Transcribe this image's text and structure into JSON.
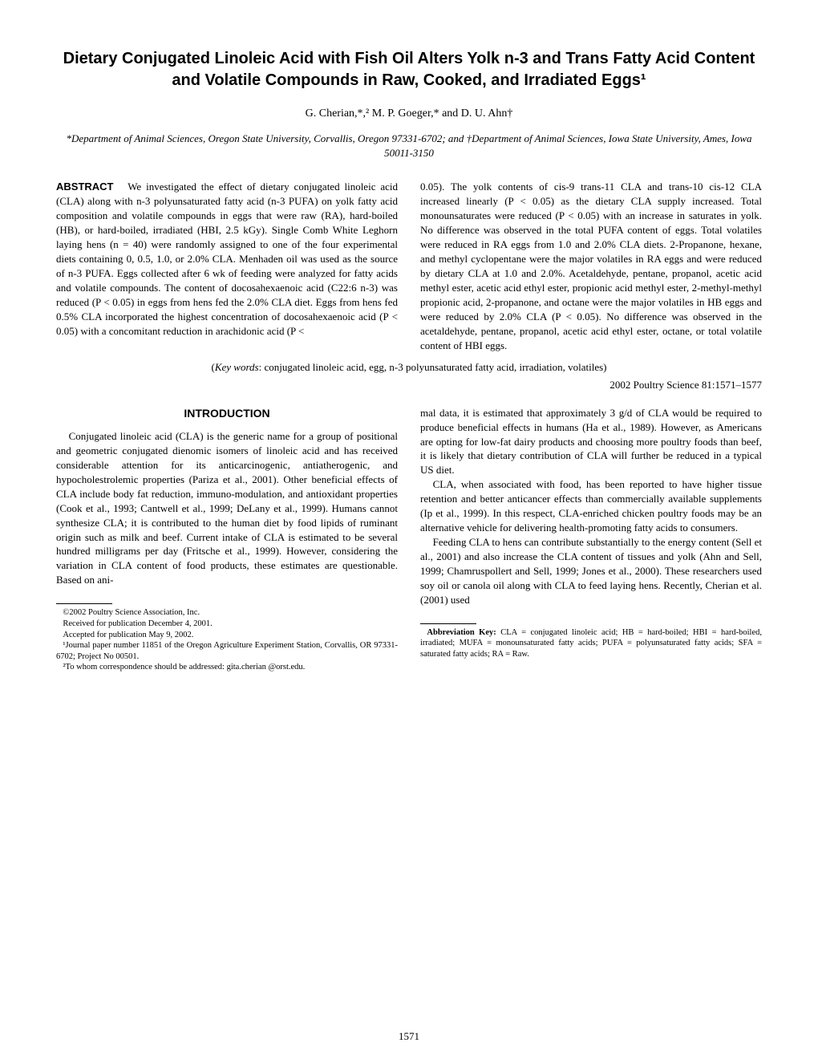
{
  "title": "Dietary Conjugated Linoleic Acid with Fish Oil Alters Yolk n-3 and Trans Fatty Acid Content and Volatile Compounds in Raw, Cooked, and Irradiated Eggs¹",
  "authors": "G. Cherian,*,² M. P. Goeger,* and D. U. Ahn†",
  "affiliations": "*Department of Animal Sciences, Oregon State University, Corvallis, Oregon 97331-6702; and †Department of Animal Sciences, Iowa State University, Ames, Iowa 50011-3150",
  "abstract": {
    "label": "ABSTRACT",
    "col1": "We investigated the effect of dietary conjugated linoleic acid (CLA) along with n-3 polyunsaturated fatty acid (n-3 PUFA) on yolk fatty acid composition and volatile compounds in eggs that were raw (RA), hard-boiled (HB), or hard-boiled, irradiated (HBI, 2.5 kGy). Single Comb White Leghorn laying hens (n = 40) were randomly assigned to one of the four experimental diets containing 0, 0.5, 1.0, or 2.0% CLA. Menhaden oil was used as the source of n-3 PUFA. Eggs collected after 6 wk of feeding were analyzed for fatty acids and volatile compounds. The content of docosahexaenoic acid (C22:6 n-3) was reduced (P < 0.05) in eggs from hens fed the 2.0% CLA diet. Eggs from hens fed 0.5% CLA incorporated the highest concentration of docosahexaenoic acid (P < 0.05) with a concomitant reduction in arachidonic acid (P <",
    "col2": "0.05). The yolk contents of cis-9 trans-11 CLA and trans-10 cis-12 CLA increased linearly (P < 0.05) as the dietary CLA supply increased. Total monounsaturates were reduced (P < 0.05) with an increase in saturates in yolk. No difference was observed in the total PUFA content of eggs. Total volatiles were reduced in RA eggs from 1.0 and 2.0% CLA diets. 2-Propanone, hexane, and methyl cyclopentane were the major volatiles in RA eggs and were reduced by dietary CLA at 1.0 and 2.0%. Acetaldehyde, pentane, propanol, acetic acid methyl ester, acetic acid ethyl ester, propionic acid methyl ester, 2-methyl-methyl propionic acid, 2-propanone, and octane were the major volatiles in HB eggs and were reduced by 2.0% CLA (P < 0.05). No difference was observed in the acetaldehyde, pentane, propanol, acetic acid ethyl ester, octane, or total volatile content of HBI eggs."
  },
  "keywords": {
    "label": "Key words",
    "text": ": conjugated linoleic acid, egg, n-3 polyunsaturated fatty acid, irradiation, volatiles)"
  },
  "citation": "2002 Poultry Science 81:1571–1577",
  "introduction": {
    "heading": "INTRODUCTION",
    "col1_p1": "Conjugated linoleic acid (CLA) is the generic name for a group of positional and geometric conjugated dienomic isomers of linoleic acid and has received considerable attention for its anticarcinogenic, antiatherogenic, and hypocholestrolemic properties (Pariza et al., 2001). Other beneficial effects of CLA include body fat reduction, immuno-modulation, and antioxidant properties (Cook et al., 1993; Cantwell et al., 1999; DeLany et al., 1999). Humans cannot synthesize CLA; it is contributed to the human diet by food lipids of ruminant origin such as milk and beef. Current intake of CLA is estimated to be several hundred milligrams per day (Fritsche et al., 1999). However, considering the variation in CLA content of food products, these estimates are questionable. Based on ani-",
    "col2_p1": "mal data, it is estimated that approximately 3 g/d of CLA would be required to produce beneficial effects in humans (Ha et al., 1989). However, as Americans are opting for low-fat dairy products and choosing more poultry foods than beef, it is likely that dietary contribution of CLA will further be reduced in a typical US diet.",
    "col2_p2": "CLA, when associated with food, has been reported to have higher tissue retention and better anticancer effects than commercially available supplements (Ip et al., 1999). In this respect, CLA-enriched chicken poultry foods may be an alternative vehicle for delivering health-promoting fatty acids to consumers.",
    "col2_p3": "Feeding CLA to hens can contribute substantially to the energy content (Sell et al., 2001) and also increase the CLA content of tissues and yolk (Ahn and Sell, 1999; Chamruspollert and Sell, 1999; Jones et al., 2000). These researchers used soy oil or canola oil along with CLA to feed laying hens. Recently, Cherian et al. (2001) used"
  },
  "footnotes": {
    "f1": "©2002 Poultry Science Association, Inc.",
    "f2": "Received for publication December 4, 2001.",
    "f3": "Accepted for publication May 9, 2002.",
    "f4": "¹Journal paper number 11851 of the Oregon Agriculture Experiment Station, Corvallis, OR 97331-6702; Project No 00501.",
    "f5": "²To whom correspondence should be addressed: gita.cherian @orst.edu."
  },
  "abbreviation": {
    "label": "Abbreviation Key:",
    "text": " CLA = conjugated linoleic acid; HB = hard-boiled; HBI = hard-boiled, irradiated; MUFA = monounsaturated fatty acids; PUFA = polyunsaturated fatty acids; SFA = saturated fatty acids; RA = Raw."
  },
  "page_number": "1571"
}
